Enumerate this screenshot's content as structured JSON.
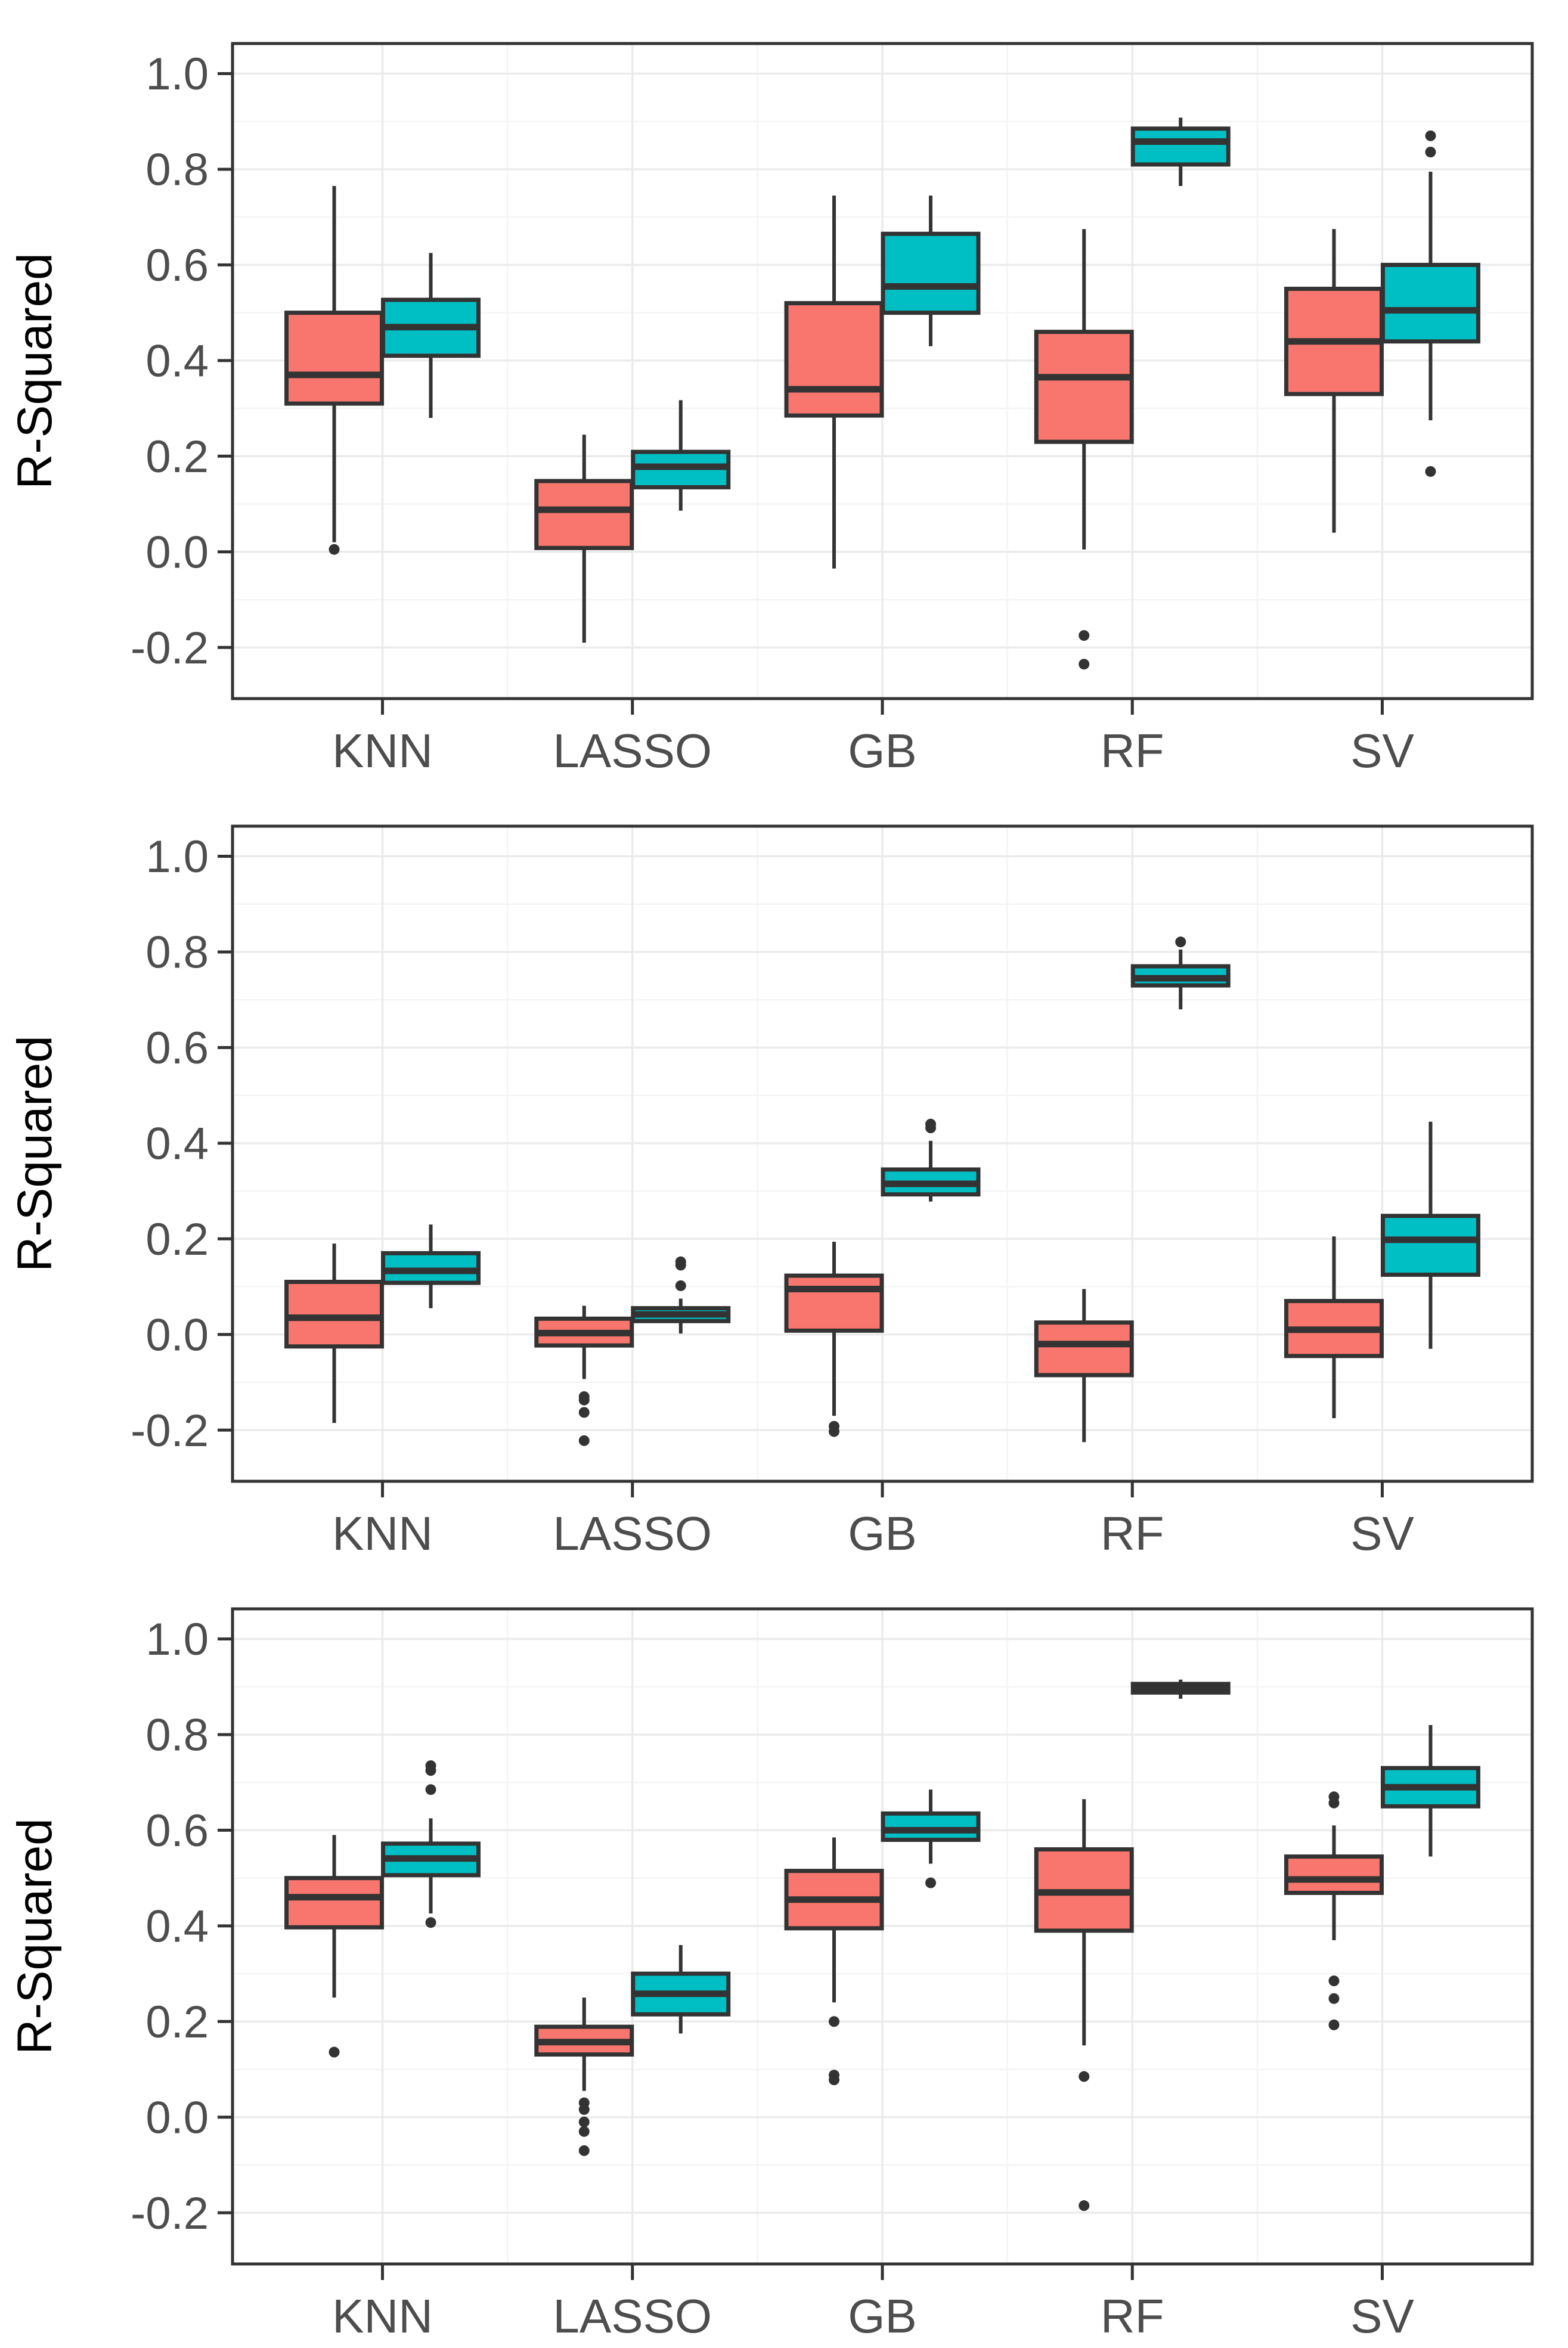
{
  "figure": {
    "y_axis_title": "R-Squared",
    "categories": [
      "KNN",
      "LASSO",
      "GB",
      "RF",
      "SV"
    ],
    "y_tick_labels": [
      "1.0",
      "0.8",
      "0.6",
      "0.4",
      "0.2",
      "0.0",
      "-0.2"
    ],
    "y_tick_values": [
      1.0,
      0.8,
      0.6,
      0.4,
      0.2,
      0.0,
      -0.2
    ],
    "y_minor_values": [
      0.9,
      0.7,
      0.5,
      0.3,
      0.1,
      -0.1
    ],
    "colors": {
      "background": "#FFFFFF",
      "box_fill_red": "#F8766D",
      "box_fill_teal": "#00BFC4",
      "box_stroke": "#333333",
      "median": "#333333",
      "whisker": "#333333",
      "outlier": "#333333",
      "grid_major": "#EBEBEB",
      "grid_minor": "#F4F4F4",
      "panel_border": "#333333",
      "tick_mark": "#333333",
      "tick_label": "#4D4D4D",
      "axis_title": "#000000"
    }
  },
  "chart_data": {
    "type": "boxplot",
    "title": "",
    "xlabel": "",
    "ylabel": "R-Squared",
    "layout": "three vertically stacked panels; grouped (dodged) boxplots, 2 series per category; grid on; no legend",
    "categories": [
      "KNN",
      "LASSO",
      "GB",
      "RF",
      "SV"
    ],
    "ylim": [
      -0.307,
      1.063
    ],
    "yticks": [
      1.0,
      0.8,
      0.6,
      0.4,
      0.2,
      0.0,
      -0.2
    ],
    "panels": [
      {
        "name": "panel-1",
        "series": [
          {
            "id": "red",
            "color": "#F8766D",
            "boxes": [
              {
                "category": "KNN",
                "whisker_low": 0.02,
                "q1": 0.31,
                "median": 0.37,
                "q3": 0.5,
                "whisker_high": 0.765,
                "outliers": [
                  0.005
                ]
              },
              {
                "category": "LASSO",
                "whisker_low": -0.19,
                "q1": 0.008,
                "median": 0.088,
                "q3": 0.148,
                "whisker_high": 0.245,
                "outliers": []
              },
              {
                "category": "GB",
                "whisker_low": -0.035,
                "q1": 0.285,
                "median": 0.34,
                "q3": 0.52,
                "whisker_high": 0.745,
                "outliers": []
              },
              {
                "category": "RF",
                "whisker_low": 0.005,
                "q1": 0.23,
                "median": 0.365,
                "q3": 0.46,
                "whisker_high": 0.675,
                "outliers": [
                  -0.175,
                  -0.235
                ]
              },
              {
                "category": "SV",
                "whisker_low": 0.04,
                "q1": 0.33,
                "median": 0.44,
                "q3": 0.55,
                "whisker_high": 0.675,
                "outliers": []
              }
            ]
          },
          {
            "id": "teal",
            "color": "#00BFC4",
            "boxes": [
              {
                "category": "KNN",
                "whisker_low": 0.28,
                "q1": 0.41,
                "median": 0.47,
                "q3": 0.527,
                "whisker_high": 0.625,
                "outliers": []
              },
              {
                "category": "LASSO",
                "whisker_low": 0.086,
                "q1": 0.135,
                "median": 0.178,
                "q3": 0.209,
                "whisker_high": 0.317,
                "outliers": []
              },
              {
                "category": "GB",
                "whisker_low": 0.43,
                "q1": 0.5,
                "median": 0.555,
                "q3": 0.665,
                "whisker_high": 0.745,
                "outliers": []
              },
              {
                "category": "RF",
                "whisker_low": 0.765,
                "q1": 0.81,
                "median": 0.858,
                "q3": 0.885,
                "whisker_high": 0.908,
                "outliers": []
              },
              {
                "category": "SV",
                "whisker_low": 0.275,
                "q1": 0.44,
                "median": 0.505,
                "q3": 0.6,
                "whisker_high": 0.795,
                "outliers": [
                  0.87,
                  0.836,
                  0.168
                ]
              }
            ]
          }
        ]
      },
      {
        "name": "panel-2",
        "series": [
          {
            "id": "red",
            "color": "#F8766D",
            "boxes": [
              {
                "category": "KNN",
                "whisker_low": -0.185,
                "q1": -0.025,
                "median": 0.035,
                "q3": 0.11,
                "whisker_high": 0.19,
                "outliers": []
              },
              {
                "category": "LASSO",
                "whisker_low": -0.093,
                "q1": -0.023,
                "median": 0.003,
                "q3": 0.033,
                "whisker_high": 0.06,
                "outliers": [
                  -0.13,
                  -0.137,
                  -0.163,
                  -0.222
                ]
              },
              {
                "category": "GB",
                "whisker_low": -0.17,
                "q1": 0.008,
                "median": 0.095,
                "q3": 0.123,
                "whisker_high": 0.194,
                "outliers": [
                  -0.192,
                  -0.203
                ]
              },
              {
                "category": "RF",
                "whisker_low": -0.225,
                "q1": -0.085,
                "median": -0.02,
                "q3": 0.025,
                "whisker_high": 0.095,
                "outliers": []
              },
              {
                "category": "SV",
                "whisker_low": -0.175,
                "q1": -0.045,
                "median": 0.01,
                "q3": 0.07,
                "whisker_high": 0.205,
                "outliers": []
              }
            ]
          },
          {
            "id": "teal",
            "color": "#00BFC4",
            "boxes": [
              {
                "category": "KNN",
                "whisker_low": 0.055,
                "q1": 0.108,
                "median": 0.133,
                "q3": 0.17,
                "whisker_high": 0.23,
                "outliers": []
              },
              {
                "category": "LASSO",
                "whisker_low": 0.002,
                "q1": 0.028,
                "median": 0.042,
                "q3": 0.055,
                "whisker_high": 0.075,
                "outliers": [
                  0.152,
                  0.145,
                  0.102
                ]
              },
              {
                "category": "GB",
                "whisker_low": 0.278,
                "q1": 0.293,
                "median": 0.315,
                "q3": 0.345,
                "whisker_high": 0.405,
                "outliers": [
                  0.44,
                  0.432
                ]
              },
              {
                "category": "RF",
                "whisker_low": 0.68,
                "q1": 0.73,
                "median": 0.745,
                "q3": 0.77,
                "whisker_high": 0.805,
                "outliers": [
                  0.821
                ]
              },
              {
                "category": "SV",
                "whisker_low": -0.03,
                "q1": 0.125,
                "median": 0.198,
                "q3": 0.248,
                "whisker_high": 0.445,
                "outliers": []
              }
            ]
          }
        ]
      },
      {
        "name": "panel-3",
        "series": [
          {
            "id": "red",
            "color": "#F8766D",
            "boxes": [
              {
                "category": "KNN",
                "whisker_low": 0.25,
                "q1": 0.397,
                "median": 0.46,
                "q3": 0.5,
                "whisker_high": 0.59,
                "outliers": [
                  0.136
                ]
              },
              {
                "category": "LASSO",
                "whisker_low": 0.055,
                "q1": 0.131,
                "median": 0.157,
                "q3": 0.189,
                "whisker_high": 0.25,
                "outliers": [
                  0.03,
                  0.016,
                  -0.01,
                  -0.03,
                  -0.07
                ]
              },
              {
                "category": "GB",
                "whisker_low": 0.24,
                "q1": 0.395,
                "median": 0.455,
                "q3": 0.515,
                "whisker_high": 0.585,
                "outliers": [
                  0.2,
                  0.088,
                  0.078
                ]
              },
              {
                "category": "RF",
                "whisker_low": 0.15,
                "q1": 0.39,
                "median": 0.47,
                "q3": 0.56,
                "whisker_high": 0.665,
                "outliers": [
                  0.085,
                  -0.185
                ]
              },
              {
                "category": "SV",
                "whisker_low": 0.37,
                "q1": 0.469,
                "median": 0.497,
                "q3": 0.545,
                "whisker_high": 0.61,
                "outliers": [
                  0.67,
                  0.657,
                  0.285,
                  0.248,
                  0.193
                ]
              }
            ]
          },
          {
            "id": "teal",
            "color": "#00BFC4",
            "boxes": [
              {
                "category": "KNN",
                "whisker_low": 0.426,
                "q1": 0.506,
                "median": 0.541,
                "q3": 0.572,
                "whisker_high": 0.625,
                "outliers": [
                  0.735,
                  0.725,
                  0.685,
                  0.407
                ]
              },
              {
                "category": "LASSO",
                "whisker_low": 0.175,
                "q1": 0.215,
                "median": 0.258,
                "q3": 0.3,
                "whisker_high": 0.36,
                "outliers": []
              },
              {
                "category": "GB",
                "whisker_low": 0.53,
                "q1": 0.58,
                "median": 0.6,
                "q3": 0.635,
                "whisker_high": 0.685,
                "outliers": [
                  0.49
                ]
              },
              {
                "category": "RF",
                "whisker_low": 0.875,
                "q1": 0.888,
                "median": 0.897,
                "q3": 0.906,
                "whisker_high": 0.915,
                "outliers": []
              },
              {
                "category": "SV",
                "whisker_low": 0.545,
                "q1": 0.65,
                "median": 0.69,
                "q3": 0.73,
                "whisker_high": 0.82,
                "outliers": []
              }
            ]
          }
        ]
      }
    ]
  }
}
